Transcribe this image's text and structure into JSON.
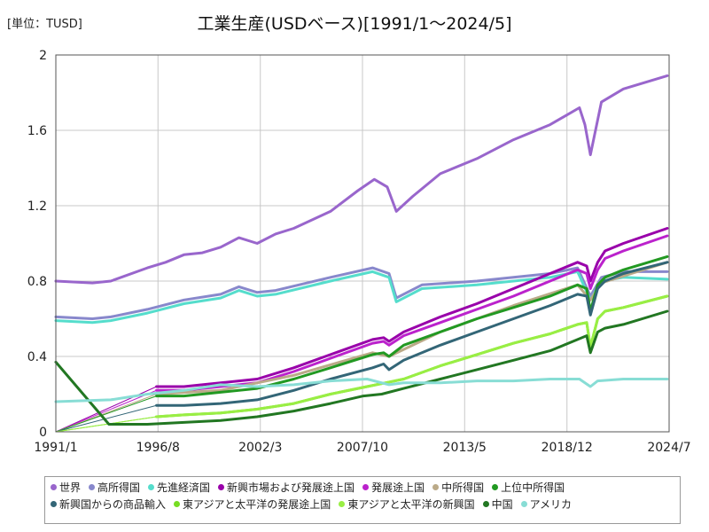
{
  "unit_label": "[単位：TUSD]",
  "chart_data": {
    "type": "line",
    "title": "工業生産(USDベース)[1991/1～2024/5]",
    "xlabel": "",
    "ylabel": "",
    "xlim": [
      1991.0,
      2024.5
    ],
    "ylim": [
      0,
      2
    ],
    "yticks": [
      "0",
      "0.4",
      "0.8",
      "1.2",
      "1.6",
      "2"
    ],
    "ytick_values": [
      0,
      0.4,
      0.8,
      1.2,
      1.6,
      2.0
    ],
    "xticks": [
      "1991/1",
      "1996/8",
      "2002/3",
      "2007/10",
      "2013/5",
      "2018/12",
      "2024/7"
    ],
    "xtick_values": [
      1991.0,
      1996.58,
      2002.17,
      2007.75,
      2013.33,
      2018.92,
      2024.5
    ],
    "grid": true,
    "legend_position": "bottom",
    "series": [
      {
        "name": "世界",
        "color": "#9966cc",
        "x": [
          1991,
          1993,
          1994,
          1996,
          1997,
          1998,
          1999,
          2000,
          2001,
          2002,
          2003,
          2004,
          2006,
          2007.5,
          2008.4,
          2009.1,
          2009.6,
          2010.5,
          2012,
          2014,
          2016,
          2018,
          2019.6,
          2019.9,
          2020.2,
          2020.8,
          2022,
          2024.4
        ],
        "y": [
          0.8,
          0.79,
          0.8,
          0.87,
          0.9,
          0.94,
          0.95,
          0.98,
          1.03,
          1.0,
          1.05,
          1.08,
          1.17,
          1.28,
          1.34,
          1.3,
          1.17,
          1.25,
          1.37,
          1.45,
          1.55,
          1.63,
          1.72,
          1.63,
          1.47,
          1.75,
          1.82,
          1.89
        ]
      },
      {
        "name": "高所得国",
        "color": "#8888cc",
        "x": [
          1991,
          1993,
          1994,
          1996,
          1998,
          2000,
          2001,
          2002,
          2003,
          2006,
          2008.3,
          2009.2,
          2009.6,
          2011,
          2014,
          2016,
          2018,
          2019.5,
          2020.2,
          2020.8,
          2022,
          2024.4
        ],
        "y": [
          0.61,
          0.6,
          0.61,
          0.65,
          0.7,
          0.73,
          0.77,
          0.74,
          0.75,
          0.82,
          0.87,
          0.84,
          0.71,
          0.78,
          0.8,
          0.82,
          0.84,
          0.87,
          0.72,
          0.82,
          0.85,
          0.85
        ]
      },
      {
        "name": "先進経済国",
        "color": "#55ddcc",
        "x": [
          1991,
          1993,
          1994,
          1996,
          1998,
          2000,
          2001,
          2002,
          2003,
          2006,
          2008.3,
          2009.2,
          2009.6,
          2011,
          2014,
          2016,
          2018,
          2019.5,
          2020.2,
          2020.8,
          2022,
          2024.4
        ],
        "y": [
          0.59,
          0.58,
          0.59,
          0.63,
          0.68,
          0.71,
          0.75,
          0.72,
          0.73,
          0.8,
          0.85,
          0.82,
          0.69,
          0.76,
          0.78,
          0.8,
          0.82,
          0.85,
          0.7,
          0.8,
          0.82,
          0.81
        ]
      },
      {
        "name": "新興市場および発展途上国",
        "color": "#9900aa",
        "x": [
          1996.5,
          1998,
          2000,
          2002,
          2004,
          2006,
          2008.3,
          2008.9,
          2009.2,
          2010,
          2012,
          2014,
          2016,
          2018,
          2019.5,
          2020.0,
          2020.2,
          2020.6,
          2021,
          2022,
          2024.4
        ],
        "y": [
          0.24,
          0.24,
          0.26,
          0.28,
          0.34,
          0.41,
          0.49,
          0.5,
          0.48,
          0.53,
          0.61,
          0.68,
          0.76,
          0.84,
          0.9,
          0.88,
          0.8,
          0.9,
          0.96,
          1.0,
          1.08
        ]
      },
      {
        "name": "発展途上国",
        "color": "#bb22cc",
        "x": [
          1996.5,
          1998,
          2000,
          2002,
          2004,
          2006,
          2008.3,
          2008.9,
          2009.2,
          2010,
          2012,
          2014,
          2016,
          2018,
          2019.5,
          2020.0,
          2020.2,
          2020.6,
          2021,
          2022,
          2024.4
        ],
        "y": [
          0.22,
          0.22,
          0.24,
          0.26,
          0.32,
          0.39,
          0.47,
          0.48,
          0.46,
          0.51,
          0.58,
          0.65,
          0.72,
          0.8,
          0.86,
          0.84,
          0.76,
          0.86,
          0.92,
          0.96,
          1.04
        ]
      },
      {
        "name": "中所得国",
        "color": "#bbaa88",
        "x": [
          1996.5,
          2000,
          2004,
          2008.3,
          2009.2,
          2012,
          2016,
          2019.5,
          2020.2,
          2020.8,
          2024.4
        ],
        "y": [
          0.2,
          0.22,
          0.3,
          0.42,
          0.4,
          0.53,
          0.67,
          0.78,
          0.7,
          0.79,
          0.9
        ]
      },
      {
        "name": "上位中所得国",
        "color": "#229922",
        "x": [
          1996.5,
          1998,
          2000,
          2002,
          2004,
          2006,
          2008.3,
          2008.9,
          2009.2,
          2010,
          2012,
          2014,
          2016,
          2018,
          2019.5,
          2020.0,
          2020.2,
          2020.6,
          2021,
          2022,
          2024.4
        ],
        "y": [
          0.19,
          0.19,
          0.21,
          0.23,
          0.28,
          0.34,
          0.41,
          0.42,
          0.4,
          0.46,
          0.53,
          0.6,
          0.66,
          0.72,
          0.78,
          0.76,
          0.64,
          0.78,
          0.82,
          0.86,
          0.93
        ]
      },
      {
        "name": "新興国からの商品輸入",
        "color": "#336677",
        "x": [
          1996.5,
          1998,
          2000,
          2002,
          2004,
          2006,
          2008.3,
          2008.9,
          2009.2,
          2010,
          2012,
          2014,
          2016,
          2018,
          2019.5,
          2020.0,
          2020.2,
          2020.6,
          2021,
          2022,
          2024.4
        ],
        "y": [
          0.14,
          0.14,
          0.15,
          0.17,
          0.22,
          0.28,
          0.34,
          0.36,
          0.33,
          0.38,
          0.46,
          0.53,
          0.6,
          0.67,
          0.73,
          0.72,
          0.62,
          0.76,
          0.8,
          0.84,
          0.9
        ]
      },
      {
        "name": "東アジアと太平洋の発展途上国",
        "color": "#77dd22",
        "x": [
          1996.5,
          1998,
          2000,
          2002,
          2004,
          2006,
          2008,
          2009,
          2010,
          2012,
          2014,
          2016,
          2018,
          2019.5,
          2020.0,
          2020.2,
          2020.6,
          2021,
          2022,
          2024.4
        ],
        "y": [
          0.08,
          0.09,
          0.1,
          0.12,
          0.15,
          0.2,
          0.24,
          0.26,
          0.28,
          0.35,
          0.41,
          0.47,
          0.52,
          0.57,
          0.58,
          0.45,
          0.6,
          0.64,
          0.66,
          0.72
        ]
      },
      {
        "name": "東アジアと太平洋の新興国",
        "color": "#99ee44",
        "x": [
          1996.5,
          1998,
          2000,
          2002,
          2004,
          2006,
          2008,
          2009,
          2010,
          2012,
          2014,
          2016,
          2018,
          2019.5,
          2020.0,
          2020.2,
          2020.6,
          2021,
          2022,
          2024.4
        ],
        "y": [
          0.08,
          0.09,
          0.1,
          0.12,
          0.15,
          0.2,
          0.24,
          0.26,
          0.28,
          0.35,
          0.41,
          0.47,
          0.52,
          0.57,
          0.58,
          0.45,
          0.6,
          0.64,
          0.66,
          0.72
        ]
      },
      {
        "name": "中国",
        "color": "#227722",
        "x": [
          1991,
          1993.9,
          1996,
          1998,
          2000,
          2002,
          2004,
          2006,
          2007.8,
          2008.8,
          2010,
          2012,
          2014,
          2016,
          2018,
          2019.5,
          2020.0,
          2020.2,
          2020.6,
          2021,
          2022,
          2024.4
        ],
        "y": [
          0.37,
          0.04,
          0.04,
          0.05,
          0.06,
          0.08,
          0.11,
          0.15,
          0.19,
          0.2,
          0.23,
          0.28,
          0.33,
          0.38,
          0.43,
          0.49,
          0.51,
          0.42,
          0.53,
          0.55,
          0.57,
          0.64
        ]
      },
      {
        "name": "アメリカ",
        "color": "#88ddd5",
        "x": [
          1991,
          1994,
          1996,
          1998,
          2000,
          2002,
          2004,
          2006,
          2008,
          2009.2,
          2010,
          2012,
          2014,
          2016,
          2018,
          2019.6,
          2020.2,
          2020.6,
          2022,
          2024.4
        ],
        "y": [
          0.16,
          0.17,
          0.2,
          0.22,
          0.25,
          0.24,
          0.25,
          0.27,
          0.28,
          0.25,
          0.26,
          0.26,
          0.27,
          0.27,
          0.28,
          0.28,
          0.24,
          0.27,
          0.28,
          0.28
        ]
      }
    ]
  }
}
